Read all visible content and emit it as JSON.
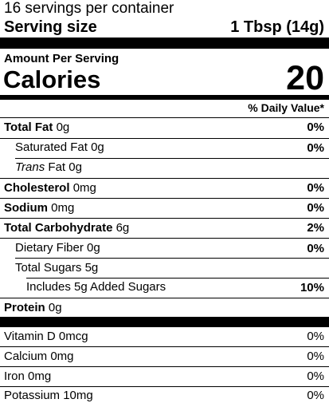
{
  "header": {
    "servings_per_container": "16 servings per container",
    "serving_size_label": "Serving size",
    "serving_size_value": "1 Tbsp (14g)"
  },
  "calories": {
    "amount_per_serving": "Amount Per Serving",
    "label": "Calories",
    "value": "20"
  },
  "daily_value_header": "% Daily Value*",
  "nutrients": {
    "total_fat": {
      "name": "Total Fat",
      "amount": "0g",
      "dv": "0%"
    },
    "saturated_fat": {
      "name": "Saturated Fat",
      "amount": "0g",
      "dv": "0%"
    },
    "trans_fat": {
      "name_italic": "Trans",
      "name": "Fat",
      "amount": "0g"
    },
    "cholesterol": {
      "name": "Cholesterol",
      "amount": "0mg",
      "dv": "0%"
    },
    "sodium": {
      "name": "Sodium",
      "amount": "0mg",
      "dv": "0%"
    },
    "total_carbohydrate": {
      "name": "Total Carbohydrate",
      "amount": "6g",
      "dv": "2%"
    },
    "dietary_fiber": {
      "name": "Dietary Fiber",
      "amount": "0g",
      "dv": "0%"
    },
    "total_sugars": {
      "name": "Total Sugars",
      "amount": "5g"
    },
    "added_sugars": {
      "text": "Includes 5g Added Sugars",
      "dv": "10%"
    },
    "protein": {
      "name": "Protein",
      "amount": "0g"
    }
  },
  "vitamins": {
    "vitamin_d": {
      "label": "Vitamin D 0mcg",
      "dv": "0%"
    },
    "calcium": {
      "label": "Calcium 0mg",
      "dv": "0%"
    },
    "iron": {
      "label": "Iron 0mg",
      "dv": "0%"
    },
    "potassium": {
      "label": "Potassium 10mg",
      "dv": "0%"
    }
  }
}
